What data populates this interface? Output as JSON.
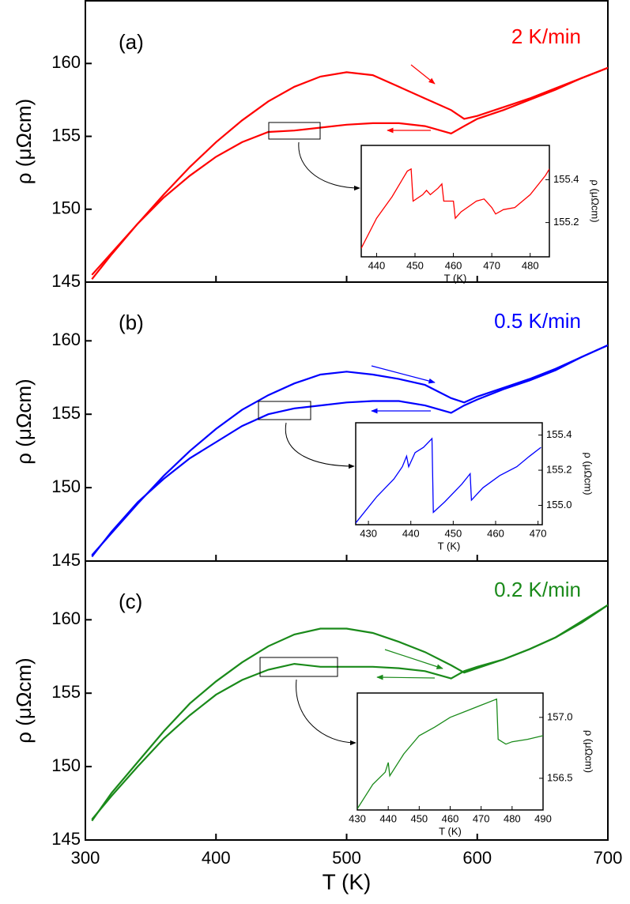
{
  "chart_data": [
    {
      "type": "line",
      "panel_label": "(a)",
      "rate_label": "2 K/min",
      "rate_color": "#ff0000",
      "ylabel": "ρ (μΩcm)",
      "xlim": [
        300,
        700
      ],
      "xticks": [
        300,
        400,
        500,
        600,
        700
      ],
      "ylim": [
        145,
        164.3
      ],
      "yticks": [
        145,
        150,
        155,
        160
      ],
      "x": [
        305,
        320,
        340,
        360,
        380,
        400,
        420,
        440,
        460,
        480,
        500,
        520,
        540,
        560,
        580,
        590,
        600,
        620,
        640,
        660,
        680,
        700
      ],
      "series": [
        {
          "color": "#ff0000",
          "values": [
            145.5,
            147.0,
            149.0,
            151.0,
            152.9,
            154.6,
            156.1,
            157.4,
            158.4,
            159.1,
            159.4,
            159.2,
            158.4,
            157.6,
            156.8,
            156.2,
            156.4,
            157.0,
            157.6,
            158.3,
            159.0,
            159.7
          ]
        },
        {
          "color": "#ff0000",
          "values": [
            145.2,
            146.9,
            149.0,
            150.8,
            152.3,
            153.6,
            154.6,
            155.3,
            155.4,
            155.6,
            155.8,
            155.9,
            155.9,
            155.7,
            155.2,
            155.7,
            156.2,
            156.8,
            157.5,
            158.2,
            159.0,
            159.7
          ]
        }
      ],
      "inset": {
        "type": "line",
        "xlabel": "T (K)",
        "ylabel": "ρ (μΩcm)",
        "xlim": [
          436,
          485
        ],
        "xticks": [
          440,
          450,
          460,
          470,
          480
        ],
        "ylim": [
          155.04,
          155.56
        ],
        "yticks": [
          155.2,
          155.4
        ],
        "x": [
          436,
          440,
          444,
          448,
          449,
          449.5,
          452,
          453,
          454,
          456,
          457,
          457.5,
          460,
          460.5,
          462,
          466,
          468,
          470,
          471,
          473,
          476,
          480,
          484,
          485
        ],
        "series": [
          {
            "color": "#ff0000",
            "values": [
              155.08,
              155.22,
              155.32,
              155.44,
              155.45,
              155.3,
              155.33,
              155.35,
              155.33,
              155.36,
              155.38,
              155.3,
              155.3,
              155.22,
              155.25,
              155.3,
              155.31,
              155.27,
              155.24,
              155.26,
              155.27,
              155.33,
              155.42,
              155.45
            ]
          }
        ]
      }
    },
    {
      "type": "line",
      "panel_label": "(b)",
      "rate_label": "0.5 K/min",
      "rate_color": "#0000ff",
      "ylabel": "ρ (μΩcm)",
      "xlim": [
        300,
        700
      ],
      "xticks": [
        300,
        400,
        500,
        600,
        700
      ],
      "ylim": [
        145,
        164
      ],
      "yticks": [
        145,
        150,
        155,
        160
      ],
      "x": [
        305,
        320,
        340,
        360,
        380,
        400,
        420,
        440,
        460,
        480,
        500,
        520,
        540,
        560,
        580,
        590,
        600,
        620,
        640,
        660,
        680,
        700
      ],
      "series": [
        {
          "color": "#0000ff",
          "values": [
            145.4,
            146.9,
            148.9,
            150.8,
            152.5,
            154.0,
            155.3,
            156.3,
            157.1,
            157.7,
            157.9,
            157.7,
            157.4,
            157.0,
            156.1,
            155.8,
            156.2,
            156.8,
            157.4,
            158.1,
            158.9,
            159.7
          ]
        },
        {
          "color": "#0000ff",
          "values": [
            145.3,
            147.0,
            149.0,
            150.6,
            152.0,
            153.1,
            154.2,
            155.0,
            155.4,
            155.6,
            155.8,
            155.9,
            155.9,
            155.6,
            155.1,
            155.6,
            156.0,
            156.7,
            157.3,
            158.0,
            158.9,
            159.7
          ]
        }
      ],
      "inset": {
        "type": "line",
        "xlabel": "T (K)",
        "ylabel": "ρ (μΩcm)",
        "xlim": [
          427,
          471
        ],
        "xticks": [
          430,
          440,
          450,
          460,
          470
        ],
        "ylim": [
          154.89,
          155.47
        ],
        "yticks": [
          {
            "value": 155,
            "label": "155.0"
          },
          155.2,
          155.4
        ],
        "x": [
          427,
          432,
          436,
          438,
          439,
          439.5,
          441,
          443,
          445,
          445.3,
          448,
          452,
          454,
          454.3,
          457,
          461,
          465,
          468,
          470.7
        ],
        "series": [
          {
            "color": "#0000ff",
            "values": [
              154.9,
              155.05,
              155.15,
              155.22,
              155.28,
              155.22,
              155.3,
              155.33,
              155.38,
              154.96,
              155.02,
              155.12,
              155.18,
              155.03,
              155.1,
              155.17,
              155.22,
              155.28,
              155.33
            ]
          }
        ]
      }
    },
    {
      "type": "line",
      "panel_label": "(c)",
      "rate_label": "0.2 K/min",
      "rate_color": "#1a8a1a",
      "ylabel": "ρ (μΩcm)",
      "xlabel": "T (K)",
      "xlim": [
        300,
        700
      ],
      "xticks": [
        300,
        400,
        500,
        600,
        700
      ],
      "ylim": [
        145,
        164
      ],
      "yticks": [
        145,
        150,
        155,
        160
      ],
      "x": [
        305,
        320,
        340,
        360,
        380,
        400,
        420,
        440,
        460,
        480,
        500,
        520,
        540,
        560,
        580,
        590,
        600,
        620,
        640,
        660,
        680,
        700
      ],
      "series": [
        {
          "color": "#1a8a1a",
          "values": [
            146.3,
            148.2,
            150.3,
            152.4,
            154.3,
            155.8,
            157.1,
            158.2,
            159.0,
            159.4,
            159.4,
            159.1,
            158.5,
            157.8,
            156.9,
            156.4,
            156.7,
            157.3,
            158.0,
            158.8,
            159.8,
            161.0
          ]
        },
        {
          "color": "#1a8a1a",
          "values": [
            146.4,
            148.0,
            150.0,
            151.9,
            153.5,
            154.9,
            155.9,
            156.6,
            157.0,
            156.8,
            156.8,
            156.8,
            156.7,
            156.5,
            156.0,
            156.5,
            156.8,
            157.3,
            158.0,
            158.8,
            159.9,
            161.0
          ]
        }
      ],
      "inset": {
        "type": "line",
        "xlabel": "T (K)",
        "ylabel": "ρ (μΩcm)",
        "xlim": [
          430,
          490
        ],
        "xticks": [
          430,
          440,
          450,
          460,
          470,
          480,
          490
        ],
        "ylim": [
          156.24,
          157.2
        ],
        "yticks": [
          {
            "value": 156.5,
            "label": "156.5"
          },
          {
            "value": 157,
            "label": "157.0"
          }
        ],
        "x": [
          430,
          435,
          439,
          440,
          440.5,
          445,
          450,
          455,
          460,
          465,
          470,
          475,
          475.5,
          478,
          480,
          485,
          490
        ],
        "series": [
          {
            "color": "#1a8a1a",
            "values": [
              156.25,
              156.45,
              156.55,
              156.63,
              156.52,
              156.7,
              156.85,
              156.92,
              157.0,
              157.05,
              157.1,
              157.15,
              156.82,
              156.78,
              156.8,
              156.82,
              156.85
            ]
          }
        ]
      }
    }
  ]
}
